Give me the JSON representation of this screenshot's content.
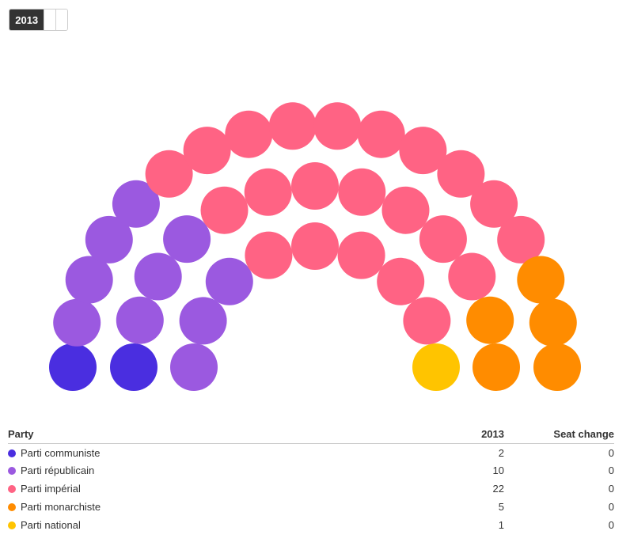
{
  "year_selector": {
    "active": "2013"
  },
  "chart_data": {
    "type": "parliament",
    "year": "2013",
    "total_seats": 40,
    "parties": [
      {
        "name": "Parti communiste",
        "seats": 2,
        "change": 0,
        "color": "#4a2ee0"
      },
      {
        "name": "Parti républicain",
        "seats": 10,
        "change": 0,
        "color": "#9b59e0"
      },
      {
        "name": "Parti impérial",
        "seats": 22,
        "change": 0,
        "color": "#ff6384"
      },
      {
        "name": "Parti monarchiste",
        "seats": 5,
        "change": 0,
        "color": "#ff8c00"
      },
      {
        "name": "Parti national",
        "seats": 1,
        "change": 0,
        "color": "#ffc400"
      }
    ]
  },
  "table": {
    "headers": {
      "party": "Party",
      "year": "2013",
      "change": "Seat change"
    },
    "rows": [
      {
        "party": "Parti communiste",
        "seats": "2",
        "change": "0"
      },
      {
        "party": "Parti républicain",
        "seats": "10",
        "change": "0"
      },
      {
        "party": "Parti impérial",
        "seats": "22",
        "change": "0"
      },
      {
        "party": "Parti monarchiste",
        "seats": "5",
        "change": "0"
      },
      {
        "party": "Parti national",
        "seats": "1",
        "change": "0"
      }
    ]
  }
}
